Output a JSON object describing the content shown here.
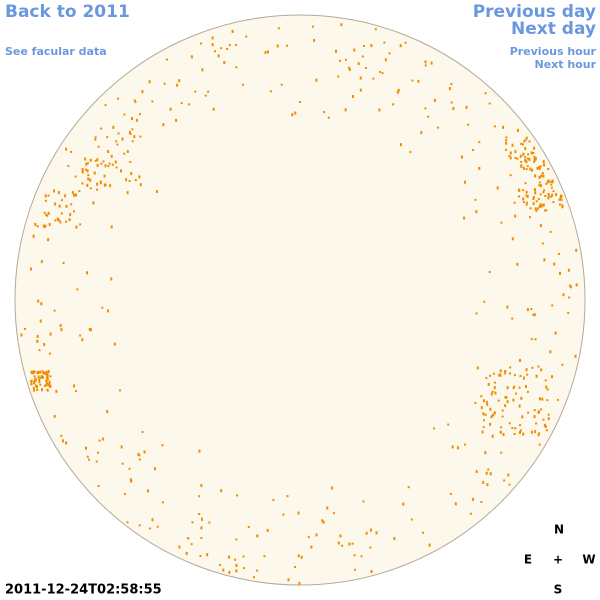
{
  "navigation": {
    "back_year": "Back to 2011",
    "facular_data": "See facular data",
    "previous_day": "Previous day",
    "next_day": "Next day",
    "previous_hour": "Previous hour",
    "next_hour": "Next hour"
  },
  "compass": {
    "north": "N",
    "east": "E",
    "center": "+",
    "west": "W",
    "south": "S"
  },
  "timestamp": "2011-12-24T02:58:55"
}
